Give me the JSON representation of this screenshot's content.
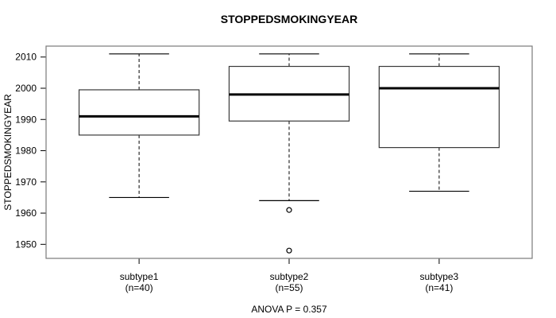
{
  "chart_data": {
    "type": "boxplot",
    "title": "STOPPEDSMOKINGYEAR",
    "ylabel": "STOPPEDSMOKINGYEAR",
    "xlabel": "",
    "footnote": "ANOVA P = 0.357",
    "categories": [
      "subtype1",
      "subtype2",
      "subtype3"
    ],
    "category_sublabels": [
      "(n=40)",
      "(n=55)",
      "(n=41)"
    ],
    "groups": [
      {
        "label": "subtype1",
        "sublabel": "(n=40)",
        "n": 40,
        "whisker_low": 1965,
        "q1": 1985,
        "median": 1991,
        "q3": 1999.5,
        "whisker_high": 2011,
        "outliers": []
      },
      {
        "label": "subtype2",
        "sublabel": "(n=55)",
        "n": 55,
        "whisker_low": 1964,
        "q1": 1989.5,
        "median": 1998,
        "q3": 2007,
        "whisker_high": 2011,
        "outliers": [
          1961,
          1948
        ]
      },
      {
        "label": "subtype3",
        "sublabel": "(n=41)",
        "n": 41,
        "whisker_low": 1967,
        "q1": 1981,
        "median": 2000,
        "q3": 2007,
        "whisker_high": 2011,
        "outliers": []
      }
    ],
    "y_ticks": [
      1950,
      1960,
      1970,
      1980,
      1990,
      2000,
      2010
    ],
    "ylim": [
      1945.5,
      2013.5
    ],
    "xlim": [
      0.38,
      3.62
    ],
    "box_width": 0.8,
    "grid": false,
    "legend": null,
    "colors": {
      "stroke": "#000000",
      "frame": "#7a7a7a",
      "background": "#ffffff"
    }
  }
}
